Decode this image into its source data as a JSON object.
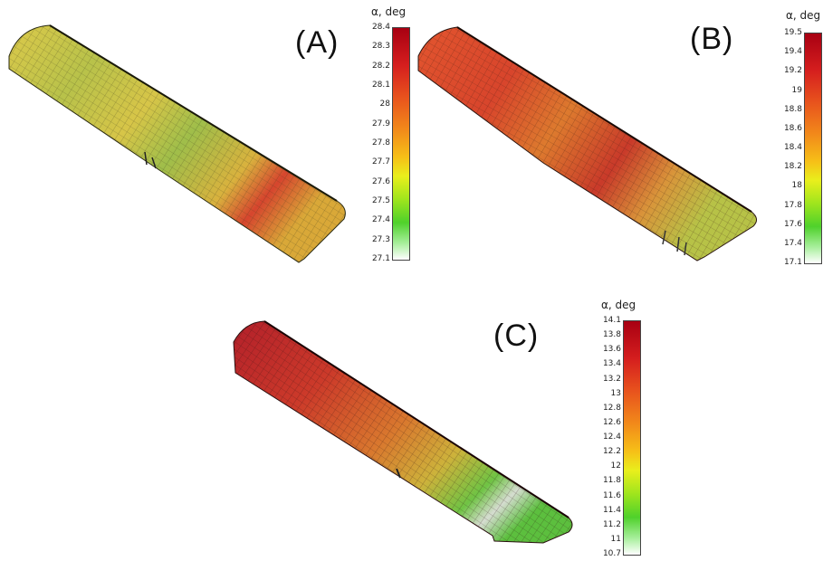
{
  "panels": [
    {
      "label": "(A)",
      "colorbar": {
        "title": "α, deg",
        "ticks": [
          "28.4",
          "28.3",
          "28.2",
          "28.1",
          "28",
          "27.9",
          "27.8",
          "27.7",
          "27.6",
          "27.5",
          "27.4",
          "27.3",
          "27.1"
        ]
      },
      "colors": {
        "dominant": "#d8c843",
        "secondary": "#6cb544",
        "hot": "#d2332a"
      }
    },
    {
      "label": "(B)",
      "colorbar": {
        "title": "α, deg",
        "ticks": [
          "19.5",
          "19.4",
          "19.2",
          "19",
          "18.8",
          "18.6",
          "18.4",
          "18.2",
          "18",
          "17.8",
          "17.6",
          "17.4",
          "17.1"
        ]
      },
      "colors": {
        "dominant": "#e06a2e",
        "secondary": "#c9b23a",
        "hot": "#b3192b"
      }
    },
    {
      "label": "(C)",
      "colorbar": {
        "title": "α, deg",
        "ticks": [
          "14.1",
          "13.8",
          "13.6",
          "13.4",
          "13.2",
          "13",
          "12.8",
          "12.6",
          "12.4",
          "12.2",
          "12",
          "11.8",
          "11.6",
          "11.4",
          "11.2",
          "11",
          "10.7"
        ]
      },
      "colors": {
        "dominant": "#d2382a",
        "secondary": "#d9b33a",
        "hot": "#6cc443"
      }
    }
  ]
}
